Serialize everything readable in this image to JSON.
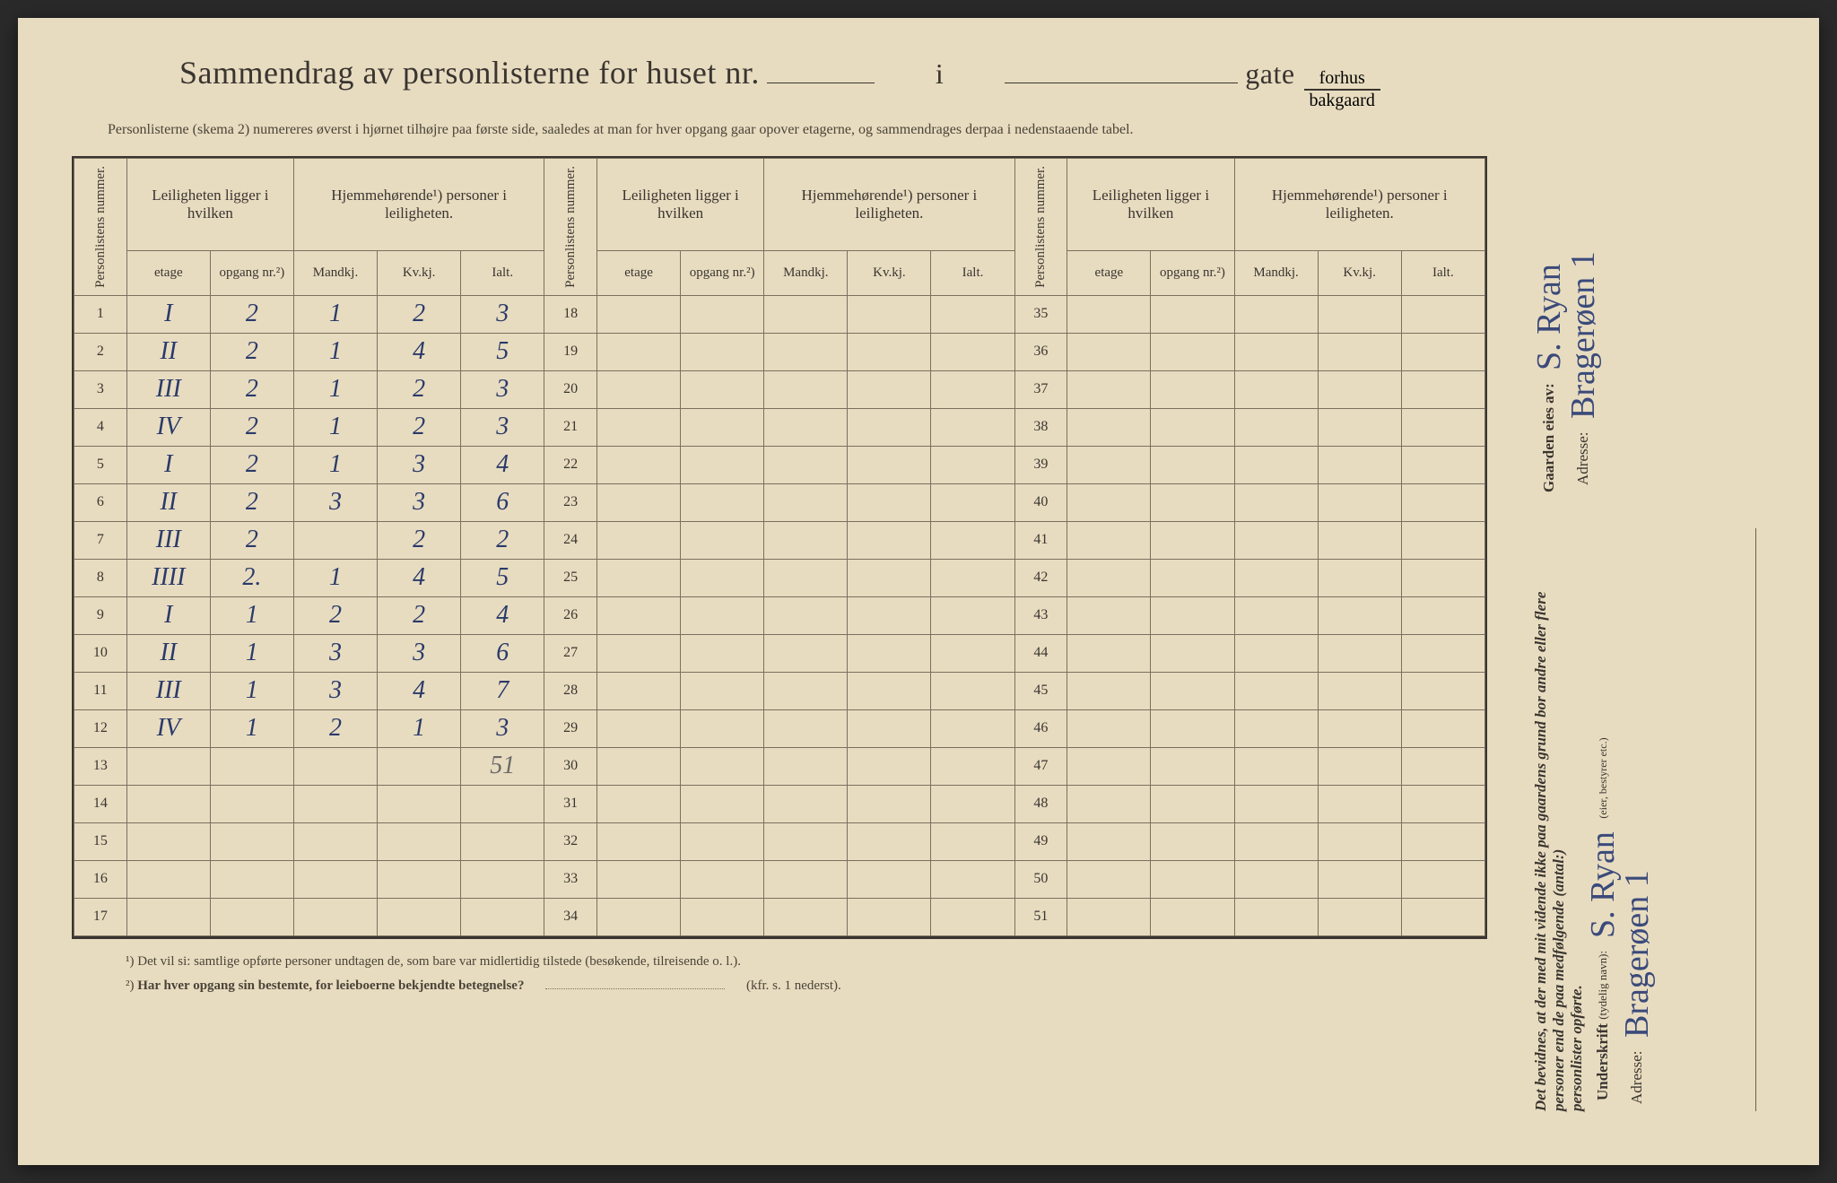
{
  "header": {
    "title_prefix": "Sammendrag av personlisterne for huset nr.",
    "title_i": "i",
    "title_gate": "gate",
    "fraction_top": "forhus",
    "fraction_bot": "bakgaard",
    "subtitle": "Personlisterne (skema 2) numereres øverst i hjørnet tilhøjre paa første side, saaledes at man for hver opgang gaar opover etagerne, og sammendrages derpaa i nedenstaaende tabel."
  },
  "columns": {
    "personlistens": "Personlistens nummer.",
    "leiligheten": "Leiligheten ligger i hvilken",
    "hjemme": "Hjemmehørende¹) personer i leiligheten.",
    "etage": "etage",
    "opgang": "opgang nr.²)",
    "mandkj": "Mandkj.",
    "kvkj": "Kv.kj.",
    "ialt": "Ialt."
  },
  "rows_left": [
    {
      "n": "1",
      "etage": "I",
      "opgang": "2",
      "m": "1",
      "k": "2",
      "i": "3"
    },
    {
      "n": "2",
      "etage": "II",
      "opgang": "2",
      "m": "1",
      "k": "4",
      "i": "5"
    },
    {
      "n": "3",
      "etage": "III",
      "opgang": "2",
      "m": "1",
      "k": "2",
      "i": "3"
    },
    {
      "n": "4",
      "etage": "IV",
      "opgang": "2",
      "m": "1",
      "k": "2",
      "i": "3"
    },
    {
      "n": "5",
      "etage": "I",
      "opgang": "2",
      "m": "1",
      "k": "3",
      "i": "4"
    },
    {
      "n": "6",
      "etage": "II",
      "opgang": "2",
      "m": "3",
      "k": "3",
      "i": "6"
    },
    {
      "n": "7",
      "etage": "III",
      "opgang": "2",
      "m": "",
      "k": "2",
      "i": "2"
    },
    {
      "n": "8",
      "etage": "IIII",
      "opgang": "2.",
      "m": "1",
      "k": "4",
      "i": "5"
    },
    {
      "n": "9",
      "etage": "I",
      "opgang": "1",
      "m": "2",
      "k": "2",
      "i": "4"
    },
    {
      "n": "10",
      "etage": "II",
      "opgang": "1",
      "m": "3",
      "k": "3",
      "i": "6"
    },
    {
      "n": "11",
      "etage": "III",
      "opgang": "1",
      "m": "3",
      "k": "4",
      "i": "7"
    },
    {
      "n": "12",
      "etage": "IV",
      "opgang": "1",
      "m": "2",
      "k": "1",
      "i": "3"
    },
    {
      "n": "13",
      "etage": "",
      "opgang": "",
      "m": "",
      "k": "",
      "i": "51"
    },
    {
      "n": "14",
      "etage": "",
      "opgang": "",
      "m": "",
      "k": "",
      "i": ""
    },
    {
      "n": "15",
      "etage": "",
      "opgang": "",
      "m": "",
      "k": "",
      "i": ""
    },
    {
      "n": "16",
      "etage": "",
      "opgang": "",
      "m": "",
      "k": "",
      "i": ""
    },
    {
      "n": "17",
      "etage": "",
      "opgang": "",
      "m": "",
      "k": "",
      "i": ""
    }
  ],
  "rows_mid_nums": [
    "18",
    "19",
    "20",
    "21",
    "22",
    "23",
    "24",
    "25",
    "26",
    "27",
    "28",
    "29",
    "30",
    "31",
    "32",
    "33",
    "34"
  ],
  "rows_right_nums": [
    "35",
    "36",
    "37",
    "38",
    "39",
    "40",
    "41",
    "42",
    "43",
    "44",
    "45",
    "46",
    "47",
    "48",
    "49",
    "50",
    "51"
  ],
  "footnotes": {
    "f1": "¹) Det vil si: samtlige opførte personer undtagen de, som bare var midlertidig tilstede (besøkende, tilreisende o. l.).",
    "f2_prefix": "²) ",
    "f2_bold": "Har hver opgang sin bestemte, for leieboerne bekjendte betegnelse?",
    "f2_suffix": "(kfr. s. 1 nederst)."
  },
  "right": {
    "bevidnes": "Det bevidnes, at der med mit vidende ikke paa gaardens grund bor andre eller flere personer end de paa medfølgende (antal:)",
    "personlister": "personlister opførte.",
    "underskrift_label": "Underskrift",
    "underskrift_paren": "(tydelig navn):",
    "eier_styrer": "(eier, bestyrer etc.)",
    "adresse_label": "Adresse:",
    "signature1": "S. Ryan",
    "address1": "Bragerøen 1",
    "gaarden_label": "Gaarden eies av:",
    "owner_sig": "S. Ryan",
    "owner_addr": "Bragerøen 1"
  },
  "colors": {
    "paper": "#e8dcc0",
    "ink": "#3a3530",
    "pen": "#2a3a6a",
    "pencil": "#6a6a6a",
    "border": "#7a7060"
  }
}
